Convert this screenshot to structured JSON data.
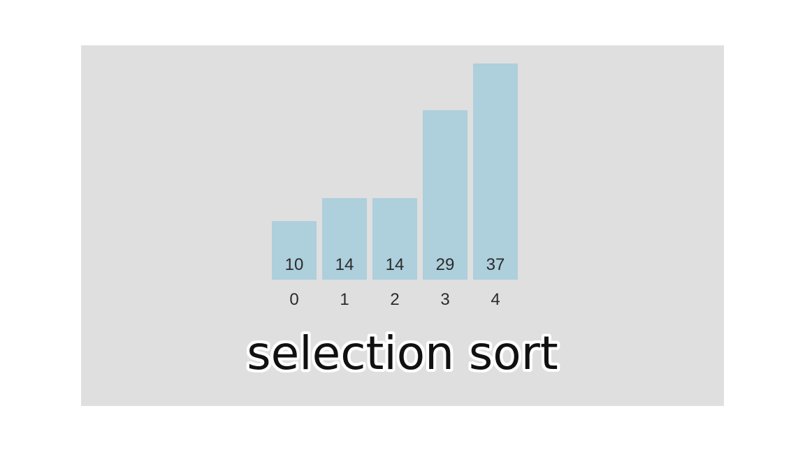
{
  "chart_data": {
    "type": "bar",
    "categories": [
      "0",
      "1",
      "2",
      "3",
      "4"
    ],
    "values": [
      10,
      14,
      14,
      29,
      37
    ],
    "title": "",
    "xlabel": "",
    "ylabel": "",
    "ylim": [
      0,
      37
    ],
    "grid": false
  },
  "caption": "selection sort",
  "colors": {
    "bar": "#aecfdc",
    "background": "#dfdfdf",
    "page": "#ffffff",
    "text": "#2b2b2b"
  }
}
